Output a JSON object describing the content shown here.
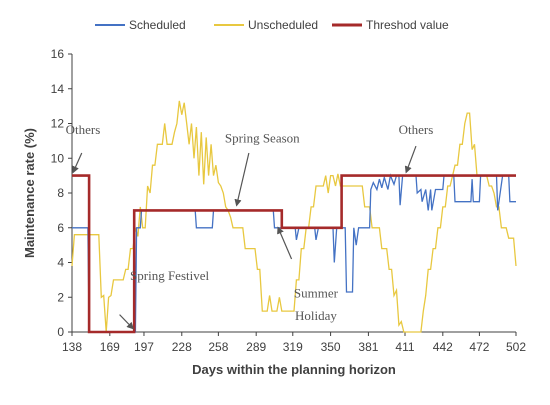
{
  "chart_data": {
    "type": "line",
    "xlabel": "Days within the planning horizon",
    "ylabel": "Maintenance rate (%)",
    "xlim": [
      138,
      502
    ],
    "ylim": [
      0,
      16
    ],
    "x_ticks": [
      138,
      169,
      197,
      228,
      258,
      289,
      319,
      350,
      381,
      411,
      442,
      472,
      502
    ],
    "y_ticks": [
      0,
      2,
      4,
      6,
      8,
      10,
      12,
      14,
      16
    ],
    "grid": false,
    "legend_position": "top",
    "legend": [
      {
        "name": "Scheduled",
        "color": "#4472c4"
      },
      {
        "name": "Unscheduled",
        "color": "#e8c840"
      },
      {
        "name": "Threshod value",
        "color": "#a52a2a"
      }
    ],
    "series": [
      {
        "name": "Scheduled",
        "color": "#4472c4",
        "points": [
          [
            138,
            6
          ],
          [
            151,
            6
          ],
          [
            152,
            0
          ],
          [
            190,
            0
          ],
          [
            191,
            6
          ],
          [
            194,
            6
          ],
          [
            195,
            7
          ],
          [
            239,
            7
          ],
          [
            240,
            6
          ],
          [
            253,
            6
          ],
          [
            254,
            7
          ],
          [
            289,
            7
          ],
          [
            296,
            7
          ],
          [
            303,
            7
          ],
          [
            304,
            6
          ],
          [
            321,
            6
          ],
          [
            322,
            5.3
          ],
          [
            324,
            6
          ],
          [
            337,
            6
          ],
          [
            338,
            5.3
          ],
          [
            340,
            6
          ],
          [
            352,
            6
          ],
          [
            353,
            4
          ],
          [
            355,
            6
          ],
          [
            362,
            6
          ],
          [
            363,
            2.3
          ],
          [
            368,
            2.3
          ],
          [
            369,
            6
          ],
          [
            371,
            5
          ],
          [
            373,
            6
          ],
          [
            382,
            6
          ],
          [
            383,
            8.2
          ],
          [
            385,
            8.6
          ],
          [
            388,
            8.2
          ],
          [
            390,
            8.8
          ],
          [
            392,
            8.3
          ],
          [
            394,
            8.9
          ],
          [
            397,
            8.2
          ],
          [
            399,
            9
          ],
          [
            402,
            8.5
          ],
          [
            404,
            9
          ],
          [
            406,
            9
          ],
          [
            407,
            7.3
          ],
          [
            409,
            9
          ],
          [
            420,
            9
          ],
          [
            421,
            8
          ],
          [
            424,
            8.2
          ],
          [
            425,
            7.5
          ],
          [
            428,
            8.2
          ],
          [
            430,
            7
          ],
          [
            432,
            8.2
          ],
          [
            433,
            7
          ],
          [
            436,
            8.2
          ],
          [
            442,
            8.2
          ],
          [
            443,
            9
          ],
          [
            451,
            9
          ],
          [
            452,
            7.5
          ],
          [
            465,
            7.5
          ],
          [
            466,
            8.8
          ],
          [
            467,
            7.5
          ],
          [
            472,
            7.5
          ],
          [
            473,
            9
          ],
          [
            486,
            9
          ],
          [
            487,
            7
          ],
          [
            491,
            9
          ],
          [
            496,
            9
          ],
          [
            497,
            7.5
          ],
          [
            502,
            7.5
          ]
        ]
      },
      {
        "name": "Unscheduled",
        "color": "#e8c840",
        "points": [
          [
            138,
            3.8
          ],
          [
            140,
            5.6
          ],
          [
            142,
            5.6
          ],
          [
            144,
            5.6
          ],
          [
            146,
            5.6
          ],
          [
            148,
            5.6
          ],
          [
            150,
            5.6
          ],
          [
            152,
            5.6
          ],
          [
            154,
            5.6
          ],
          [
            156,
            5.6
          ],
          [
            158,
            5.6
          ],
          [
            160,
            5.6
          ],
          [
            162,
            2
          ],
          [
            164,
            2.1
          ],
          [
            166,
            0
          ],
          [
            168,
            2
          ],
          [
            170,
            2.1
          ],
          [
            172,
            3
          ],
          [
            174,
            3
          ],
          [
            176,
            3
          ],
          [
            178,
            3
          ],
          [
            180,
            3
          ],
          [
            182,
            3.6
          ],
          [
            184,
            3.6
          ],
          [
            186,
            4.8
          ],
          [
            188,
            4.8
          ],
          [
            190,
            6
          ],
          [
            192,
            5.5
          ],
          [
            194,
            7.2
          ],
          [
            196,
            6
          ],
          [
            198,
            6
          ],
          [
            200,
            8.4
          ],
          [
            202,
            8
          ],
          [
            204,
            9.6
          ],
          [
            206,
            9.6
          ],
          [
            208,
            10.8
          ],
          [
            210,
            10.8
          ],
          [
            212,
            10.8
          ],
          [
            214,
            12
          ],
          [
            216,
            10.8
          ],
          [
            218,
            10.8
          ],
          [
            220,
            10.8
          ],
          [
            222,
            11.5
          ],
          [
            224,
            12
          ],
          [
            226,
            13.3
          ],
          [
            228,
            12.5
          ],
          [
            230,
            13.2
          ],
          [
            232,
            12
          ],
          [
            234,
            10.8
          ],
          [
            236,
            12
          ],
          [
            238,
            10
          ],
          [
            240,
            11.8
          ],
          [
            242,
            9
          ],
          [
            244,
            11.5
          ],
          [
            246,
            8.5
          ],
          [
            248,
            11.2
          ],
          [
            250,
            9
          ],
          [
            252,
            10.8
          ],
          [
            254,
            9
          ],
          [
            256,
            9.6
          ],
          [
            258,
            8.6
          ],
          [
            260,
            8.4
          ],
          [
            262,
            8
          ],
          [
            264,
            7.2
          ],
          [
            266,
            7
          ],
          [
            268,
            6.6
          ],
          [
            270,
            6
          ],
          [
            272,
            6
          ],
          [
            274,
            6
          ],
          [
            276,
            6
          ],
          [
            278,
            6
          ],
          [
            280,
            4.8
          ],
          [
            282,
            4.8
          ],
          [
            284,
            4.8
          ],
          [
            286,
            4.8
          ],
          [
            288,
            4.8
          ],
          [
            290,
            3.6
          ],
          [
            292,
            3.6
          ],
          [
            294,
            1.2
          ],
          [
            296,
            1.2
          ],
          [
            298,
            1.2
          ],
          [
            300,
            2.1
          ],
          [
            302,
            1.2
          ],
          [
            304,
            1.2
          ],
          [
            306,
            1.2
          ],
          [
            308,
            2
          ],
          [
            310,
            1.2
          ],
          [
            312,
            1.2
          ],
          [
            314,
            1.2
          ],
          [
            316,
            1.2
          ],
          [
            318,
            1.2
          ],
          [
            320,
            1.2
          ],
          [
            322,
            3
          ],
          [
            324,
            3
          ],
          [
            326,
            4.8
          ],
          [
            328,
            4.8
          ],
          [
            330,
            6
          ],
          [
            332,
            6
          ],
          [
            334,
            7.2
          ],
          [
            336,
            7.2
          ],
          [
            338,
            8.4
          ],
          [
            340,
            8.4
          ],
          [
            342,
            8.4
          ],
          [
            344,
            8.4
          ],
          [
            346,
            9
          ],
          [
            348,
            8
          ],
          [
            350,
            9
          ],
          [
            352,
            9
          ],
          [
            354,
            8.4
          ],
          [
            356,
            9.1
          ],
          [
            358,
            8.4
          ],
          [
            360,
            8.4
          ],
          [
            362,
            8.4
          ],
          [
            364,
            8.4
          ],
          [
            366,
            8.4
          ],
          [
            368,
            8.4
          ],
          [
            370,
            8.4
          ],
          [
            372,
            8.4
          ],
          [
            374,
            8.4
          ],
          [
            376,
            8.4
          ],
          [
            378,
            7.2
          ],
          [
            380,
            7.2
          ],
          [
            382,
            7.2
          ],
          [
            384,
            6
          ],
          [
            386,
            6
          ],
          [
            388,
            6
          ],
          [
            390,
            6
          ],
          [
            392,
            4.8
          ],
          [
            394,
            4.8
          ],
          [
            396,
            4.8
          ],
          [
            398,
            3.6
          ],
          [
            400,
            3.6
          ],
          [
            402,
            2.1
          ],
          [
            404,
            2.4
          ],
          [
            406,
            0.4
          ],
          [
            408,
            0.6
          ],
          [
            410,
            0
          ],
          [
            412,
            0
          ],
          [
            414,
            0
          ],
          [
            416,
            0
          ],
          [
            418,
            0
          ],
          [
            420,
            0
          ],
          [
            422,
            0
          ],
          [
            424,
            0
          ],
          [
            426,
            1.2
          ],
          [
            428,
            2.1
          ],
          [
            430,
            3.6
          ],
          [
            432,
            3.6
          ],
          [
            434,
            4.8
          ],
          [
            436,
            4.8
          ],
          [
            438,
            6
          ],
          [
            440,
            6
          ],
          [
            442,
            7.2
          ],
          [
            444,
            7.2
          ],
          [
            446,
            8.4
          ],
          [
            448,
            8.4
          ],
          [
            450,
            9
          ],
          [
            452,
            9.6
          ],
          [
            454,
            9.6
          ],
          [
            456,
            10.8
          ],
          [
            458,
            10.8
          ],
          [
            460,
            12
          ],
          [
            462,
            12.6
          ],
          [
            464,
            12.6
          ],
          [
            466,
            10.5
          ],
          [
            468,
            10.8
          ],
          [
            470,
            9
          ],
          [
            472,
            9
          ],
          [
            474,
            9
          ],
          [
            476,
            9
          ],
          [
            478,
            9
          ],
          [
            480,
            8.4
          ],
          [
            482,
            8.4
          ],
          [
            484,
            8
          ],
          [
            486,
            7.2
          ],
          [
            488,
            7.2
          ],
          [
            490,
            6
          ],
          [
            492,
            6
          ],
          [
            494,
            6
          ],
          [
            496,
            5.4
          ],
          [
            498,
            5.4
          ],
          [
            500,
            5.4
          ],
          [
            502,
            3.8
          ]
        ]
      },
      {
        "name": "Threshod value",
        "color": "#a52a2a",
        "points": [
          [
            138,
            9
          ],
          [
            152,
            9
          ],
          [
            152,
            0
          ],
          [
            189,
            0
          ],
          [
            189,
            7
          ],
          [
            310,
            7
          ],
          [
            310,
            6
          ],
          [
            359,
            6
          ],
          [
            359,
            9
          ],
          [
            502,
            9
          ]
        ]
      }
    ],
    "annotations": [
      {
        "text": "Others",
        "x": 147,
        "y": 11.4
      },
      {
        "text": "Spring Season",
        "x": 294,
        "y": 10.9
      },
      {
        "text": "Others",
        "x": 420,
        "y": 11.4
      },
      {
        "text": "Spring Festivel",
        "x": 218,
        "y": 3.0
      },
      {
        "text": "Summer",
        "x": 338,
        "y": 2.0
      },
      {
        "text": "Holiday",
        "x": 338,
        "y": 0.7
      }
    ],
    "arrows": [
      {
        "from": [
          146,
          10.3
        ],
        "to": [
          139,
          9.2
        ]
      },
      {
        "from": [
          283,
          10.3
        ],
        "to": [
          273,
          7.3
        ]
      },
      {
        "from": [
          318,
          4.2
        ],
        "to": [
          307,
          6.0
        ]
      },
      {
        "from": [
          420,
          10.7
        ],
        "to": [
          412,
          9.2
        ]
      },
      {
        "from": [
          177,
          1.0
        ],
        "to": [
          188,
          0.2
        ]
      }
    ]
  }
}
